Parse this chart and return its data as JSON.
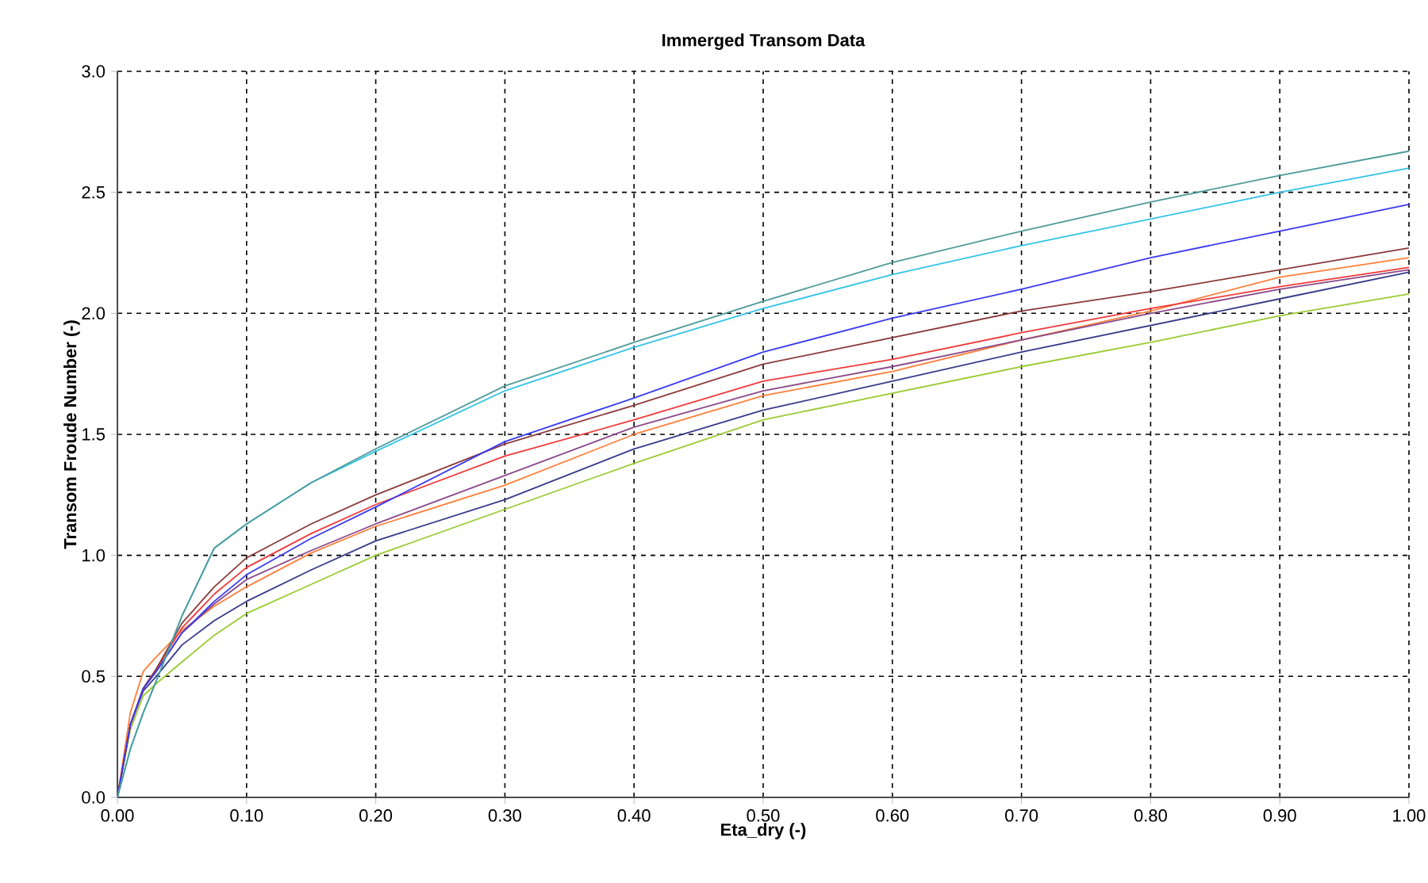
{
  "chart_data": {
    "type": "line",
    "title": "Immerged Transom Data",
    "xlabel": "Eta_dry (-)",
    "ylabel": "Transom Froude Number (-)",
    "x": [
      0,
      0.01,
      0.02,
      0.03,
      0.05,
      0.075,
      0.1,
      0.15,
      0.2,
      0.3,
      0.4,
      0.5,
      0.6,
      0.7,
      0.8,
      0.9,
      1.0
    ],
    "series": [
      {
        "color": "#4f9a9a",
        "values": [
          0,
          0.2,
          0.35,
          0.48,
          0.75,
          1.03,
          1.13,
          1.3,
          1.44,
          1.7,
          1.88,
          2.05,
          2.21,
          2.34,
          2.46,
          2.57,
          2.67
        ]
      },
      {
        "color": "#33c3e8",
        "values": [
          0,
          0.2,
          0.35,
          0.48,
          0.75,
          1.03,
          1.13,
          1.3,
          1.43,
          1.68,
          1.86,
          2.02,
          2.16,
          2.28,
          2.39,
          2.5,
          2.6
        ]
      },
      {
        "color": "#3a3af0",
        "values": [
          0,
          0.3,
          0.45,
          0.52,
          0.68,
          0.81,
          0.92,
          1.07,
          1.2,
          1.47,
          1.65,
          1.84,
          1.98,
          2.1,
          2.23,
          2.34,
          2.45
        ]
      },
      {
        "color": "#8b3a3a",
        "values": [
          0,
          0.3,
          0.45,
          0.53,
          0.72,
          0.87,
          0.99,
          1.13,
          1.25,
          1.46,
          1.62,
          1.79,
          1.9,
          2.01,
          2.09,
          2.18,
          2.27
        ]
      },
      {
        "color": "#f03a3a",
        "values": [
          0,
          0.3,
          0.45,
          0.53,
          0.7,
          0.84,
          0.95,
          1.09,
          1.21,
          1.41,
          1.56,
          1.72,
          1.81,
          1.92,
          2.02,
          2.11,
          2.19
        ]
      },
      {
        "color": "#8a4a8a",
        "values": [
          0,
          0.3,
          0.45,
          0.52,
          0.68,
          0.8,
          0.9,
          1.02,
          1.13,
          1.33,
          1.53,
          1.68,
          1.78,
          1.89,
          2.0,
          2.1,
          2.18
        ]
      },
      {
        "color": "#ff7f3a",
        "values": [
          0,
          0.35,
          0.52,
          0.58,
          0.69,
          0.79,
          0.87,
          1.01,
          1.12,
          1.29,
          1.5,
          1.66,
          1.76,
          1.89,
          2.01,
          2.15,
          2.23
        ]
      },
      {
        "color": "#3a3a8a",
        "values": [
          0,
          0.3,
          0.44,
          0.5,
          0.63,
          0.73,
          0.81,
          0.94,
          1.06,
          1.23,
          1.44,
          1.6,
          1.72,
          1.84,
          1.95,
          2.06,
          2.17
        ]
      },
      {
        "color": "#99cc33",
        "values": [
          0,
          0.28,
          0.42,
          0.47,
          0.56,
          0.67,
          0.76,
          0.88,
          1.0,
          1.19,
          1.38,
          1.56,
          1.67,
          1.78,
          1.88,
          1.99,
          2.08
        ]
      }
    ],
    "xlim": [
      0,
      1.0
    ],
    "ylim": [
      0,
      3.0
    ],
    "xticks": [
      {
        "value": 0,
        "label": "0.00"
      },
      {
        "value": 0.1,
        "label": "0.10"
      },
      {
        "value": 0.2,
        "label": "0.20"
      },
      {
        "value": 0.3,
        "label": "0.30"
      },
      {
        "value": 0.4,
        "label": "0.40"
      },
      {
        "value": 0.5,
        "label": "0.50"
      },
      {
        "value": 0.6,
        "label": "0.60"
      },
      {
        "value": 0.7,
        "label": "0.70"
      },
      {
        "value": 0.8,
        "label": "0.80"
      },
      {
        "value": 0.9,
        "label": "0.90"
      },
      {
        "value": 1.0,
        "label": "1.00"
      }
    ],
    "yticks": [
      {
        "value": 0,
        "label": "0.0"
      },
      {
        "value": 0.5,
        "label": "0.5"
      },
      {
        "value": 1.0,
        "label": "1.0"
      },
      {
        "value": 1.5,
        "label": "1.5"
      },
      {
        "value": 2.0,
        "label": "2.0"
      },
      {
        "value": 2.5,
        "label": "2.5"
      },
      {
        "value": 3.0,
        "label": "3.0"
      }
    ],
    "grid": true,
    "marker": "none",
    "line_style": "solid"
  }
}
